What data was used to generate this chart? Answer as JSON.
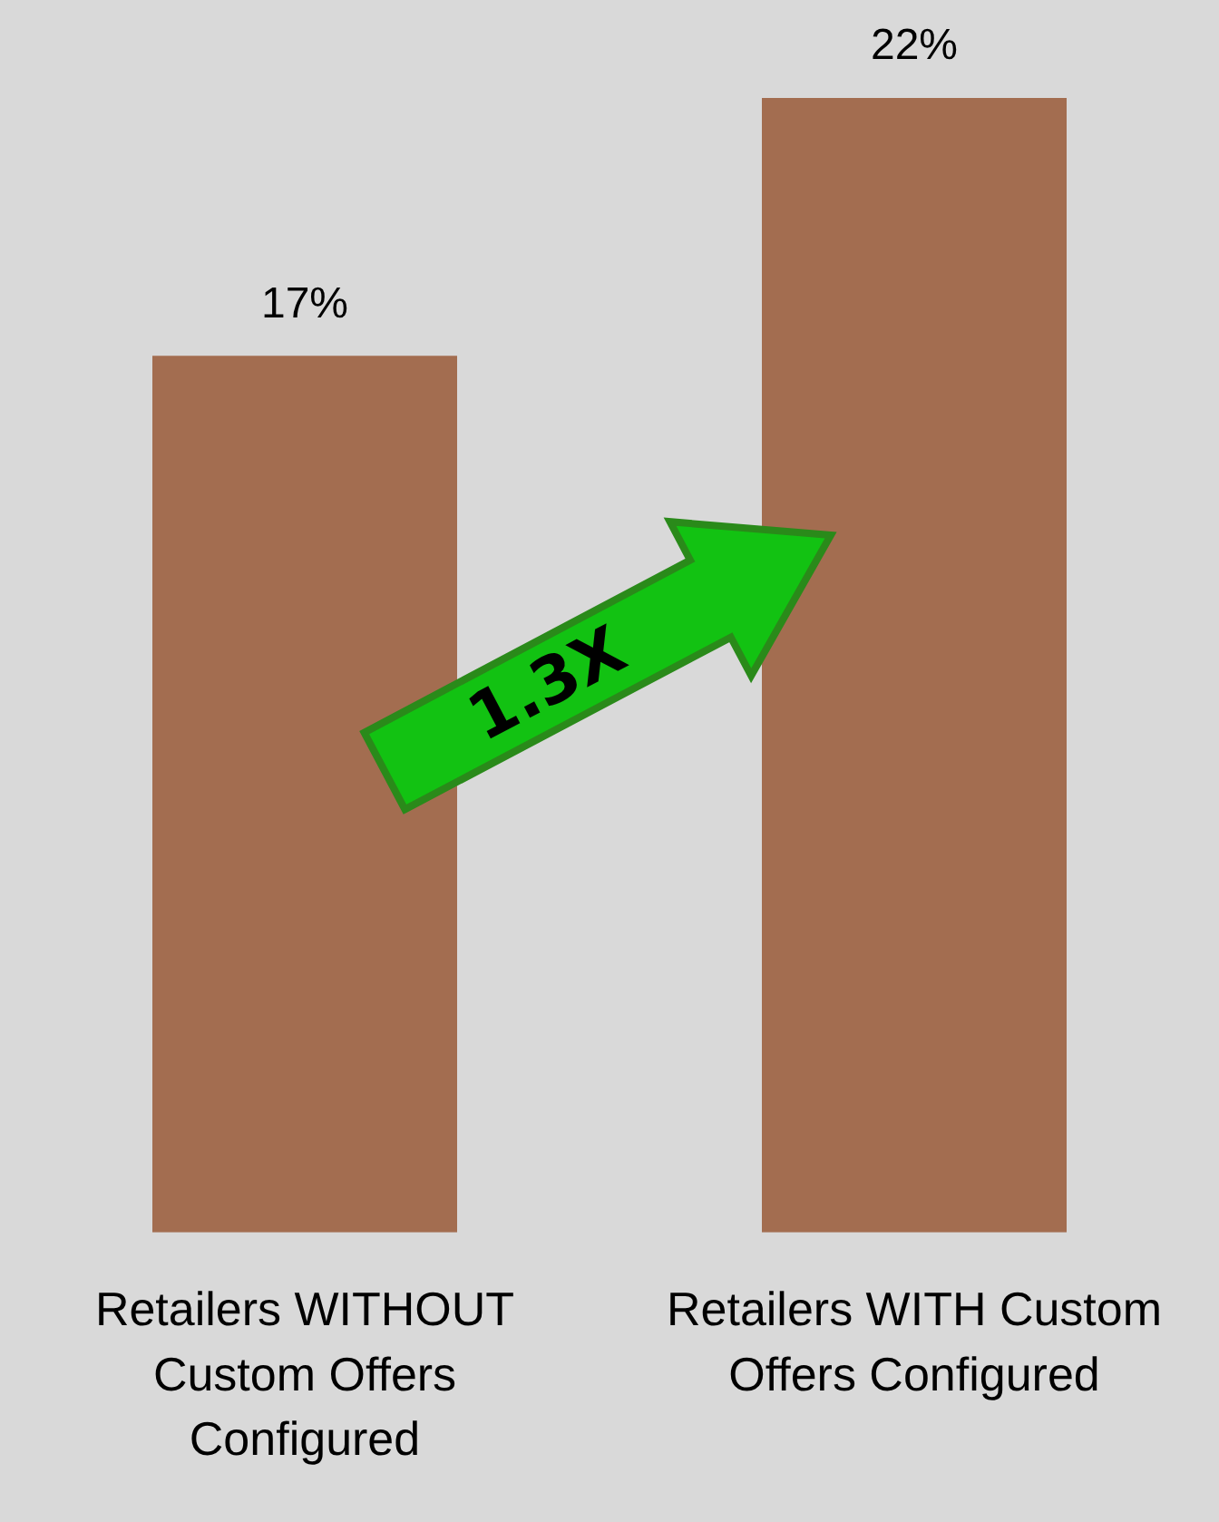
{
  "chart_data": {
    "type": "bar",
    "categories": [
      "Retailers WITHOUT Custom Offers Configured",
      "Retailers WITH Custom Offers Configured"
    ],
    "values": [
      17,
      22
    ],
    "value_labels": [
      "17%",
      "22%"
    ],
    "color": "#a36d50",
    "annotations": [
      "1.3X"
    ],
    "grid": false,
    "legend": false
  }
}
